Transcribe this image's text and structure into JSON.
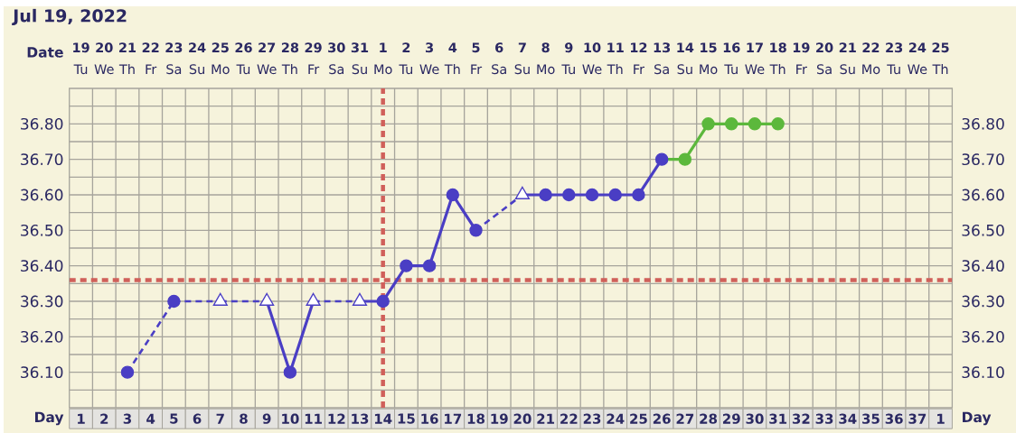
{
  "chart_data": {
    "type": "line",
    "title": "Jul 19, 2022",
    "xlabel": "Day",
    "x2label": "Date",
    "categories": [
      "1",
      "2",
      "3",
      "4",
      "5",
      "6",
      "7",
      "8",
      "9",
      "10",
      "11",
      "12",
      "13",
      "14",
      "15",
      "16",
      "17",
      "18",
      "19",
      "20",
      "21",
      "22",
      "23",
      "24",
      "25",
      "26",
      "27",
      "28",
      "29",
      "30",
      "31",
      "32",
      "33",
      "34",
      "35",
      "36",
      "37",
      "1"
    ],
    "x2lim": [
      "2022-07-18T12:00",
      "2022-08-25T12:00"
    ],
    "x2ticks": [
      {
        "value": "2022-07-19",
        "label": "**19** Tu"
      },
      {
        "value": "2022-07-20",
        "label": "**20** We"
      },
      {
        "value": "2022-07-21",
        "label": "**21** Th"
      },
      {
        "value": "2022-07-22",
        "label": "**22** Fr"
      },
      {
        "value": "2022-07-23",
        "label": "**23** Sa"
      },
      {
        "value": "2022-07-24",
        "label": "**24** Su"
      },
      {
        "value": "2022-07-25",
        "label": "**25** Mo"
      },
      {
        "value": "2022-07-26",
        "label": "**26** Tu"
      },
      {
        "value": "2022-07-27",
        "label": "**27** We"
      },
      {
        "value": "2022-07-28",
        "label": "**28** Th"
      },
      {
        "value": "2022-07-29",
        "label": "**29** Fr"
      },
      {
        "value": "2022-07-30",
        "label": "**30** Sa"
      },
      {
        "value": "2022-07-31",
        "label": "**31** Su"
      },
      {
        "value": "2022-08-01",
        "label": "**1** Mo"
      },
      {
        "value": "2022-08-02",
        "label": "**2** Tu"
      },
      {
        "value": "2022-08-03",
        "label": "**3** We"
      },
      {
        "value": "2022-08-04",
        "label": "**4** Th"
      },
      {
        "value": "2022-08-05",
        "label": "**5** Fr"
      },
      {
        "value": "2022-08-06",
        "label": "**6** Sa"
      },
      {
        "value": "2022-08-07",
        "label": "**7** Su"
      },
      {
        "value": "2022-08-08",
        "label": "**8** Mo"
      },
      {
        "value": "2022-08-09",
        "label": "**9** Tu"
      },
      {
        "value": "2022-08-10",
        "label": "**10** We"
      },
      {
        "value": "2022-08-11",
        "label": "**11** Th"
      },
      {
        "value": "2022-08-12",
        "label": "**12** Fr"
      },
      {
        "value": "2022-08-13",
        "label": "**13** Sa"
      },
      {
        "value": "2022-08-14",
        "label": "**14** Su"
      },
      {
        "value": "2022-08-15",
        "label": "**15** Mo"
      },
      {
        "value": "2022-08-16",
        "label": "**16** Tu"
      },
      {
        "value": "2022-08-17",
        "label": "**17** We"
      },
      {
        "value": "2022-08-18",
        "label": "**18** Th"
      },
      {
        "value": "2022-08-19",
        "label": "**19** Fr"
      },
      {
        "value": "2022-08-20",
        "label": "**20** Sa"
      },
      {
        "value": "2022-08-21",
        "label": "**21** Su"
      },
      {
        "value": "2022-08-22",
        "label": "**22** Mo"
      },
      {
        "value": "2022-08-23",
        "label": "**23** Tu"
      },
      {
        "value": "2022-08-24",
        "label": "**24** We"
      },
      {
        "value": "2022-08-25",
        "label": "**25** Th"
      }
    ],
    "ylim": [
      36.0,
      36.9
    ],
    "yticks": [
      {
        "value": 36.05,
        "label": null
      },
      {
        "value": 36.1,
        "label": "36.10"
      },
      {
        "value": 36.15,
        "label": null
      },
      {
        "value": 36.2,
        "label": "36.20"
      },
      {
        "value": 36.25,
        "label": null
      },
      {
        "value": 36.3,
        "label": "36.30"
      },
      {
        "value": 36.35,
        "label": null
      },
      {
        "value": 36.4,
        "label": "36.40"
      },
      {
        "value": 36.45,
        "label": null
      },
      {
        "value": 36.5,
        "label": "36.50"
      },
      {
        "value": 36.55,
        "label": null
      },
      {
        "value": 36.6,
        "label": "36.60"
      },
      {
        "value": 36.65,
        "label": null
      },
      {
        "value": 36.7,
        "label": "36.70"
      },
      {
        "value": 36.75,
        "label": null
      },
      {
        "value": 36.8,
        "label": "36.80"
      },
      {
        "value": 36.85,
        "label": null
      }
    ],
    "y2lim": [
      36.0,
      36.9
    ],
    "y2ticks": [
      {
        "value": 36.05,
        "label": null
      },
      {
        "value": 36.1,
        "label": "36.10"
      },
      {
        "value": 36.15,
        "label": null
      },
      {
        "value": 36.2,
        "label": "36.20"
      },
      {
        "value": 36.25,
        "label": null
      },
      {
        "value": 36.3,
        "label": "36.30"
      },
      {
        "value": 36.35,
        "label": null
      },
      {
        "value": 36.4,
        "label": "36.40"
      },
      {
        "value": 36.45,
        "label": null
      },
      {
        "value": 36.5,
        "label": "36.50"
      },
      {
        "value": 36.55,
        "label": null
      },
      {
        "value": 36.6,
        "label": "36.60"
      },
      {
        "value": 36.65,
        "label": null
      },
      {
        "value": 36.7,
        "label": "36.70"
      },
      {
        "value": 36.75,
        "label": null
      },
      {
        "value": 36.8,
        "label": "36.80"
      },
      {
        "value": 36.85,
        "label": null
      }
    ],
    "grid": true,
    "series": [
      {
        "color": "#4a3ec4",
        "marker": "none",
        "values": [
          null,
          null,
          36.1,
          null,
          36.3,
          null,
          36.3,
          null,
          36.3,
          36.1,
          36.3,
          null,
          36.3,
          36.3,
          36.4,
          36.4,
          36.6,
          36.5,
          null,
          36.6,
          36.6,
          36.6,
          36.6,
          36.6,
          36.6,
          36.7,
          null,
          null,
          null,
          null,
          null,
          null,
          null,
          null,
          null,
          null,
          null,
          null
        ]
      },
      {
        "color": "#5cb83c",
        "marker": "circle",
        "values": [
          null,
          null,
          null,
          null,
          null,
          null,
          null,
          null,
          null,
          null,
          null,
          null,
          null,
          null,
          null,
          null,
          null,
          null,
          null,
          null,
          null,
          null,
          null,
          null,
          null,
          36.7,
          36.7,
          36.8,
          36.8,
          36.8,
          36.8,
          null,
          null,
          null,
          null,
          null,
          null,
          null
        ]
      },
      {
        "type": "scatter",
        "color": "#4a3ec4",
        "marker": "circle",
        "values": [
          null,
          null,
          36.1,
          null,
          36.3,
          null,
          null,
          null,
          null,
          36.1,
          null,
          null,
          null,
          36.3,
          36.4,
          36.4,
          36.6,
          36.5,
          null,
          null,
          36.6,
          36.6,
          36.6,
          36.6,
          36.6,
          36.7,
          null,
          null,
          null,
          null,
          null,
          null,
          null,
          null,
          null,
          null,
          null,
          null
        ]
      },
      {
        "type": "scatter",
        "color": "#4a3ec4",
        "marker": "triangle",
        "values": [
          null,
          null,
          null,
          null,
          null,
          null,
          36.3,
          null,
          36.3,
          null,
          36.3,
          null,
          36.3,
          null,
          null,
          null,
          null,
          null,
          null,
          36.6,
          null,
          null,
          null,
          null,
          null,
          null,
          null,
          null,
          null,
          null,
          null,
          null,
          null,
          null,
          null,
          null,
          null,
          null
        ]
      }
    ],
    "ref_lines": [
      {
        "axis": "x2",
        "value": "2022-08-01",
        "color": "#d0605a",
        "line_style": "dashed"
      },
      {
        "axis": "y",
        "value": 36.36,
        "color": "#d0605a",
        "line_style": "dashed"
      }
    ]
  }
}
